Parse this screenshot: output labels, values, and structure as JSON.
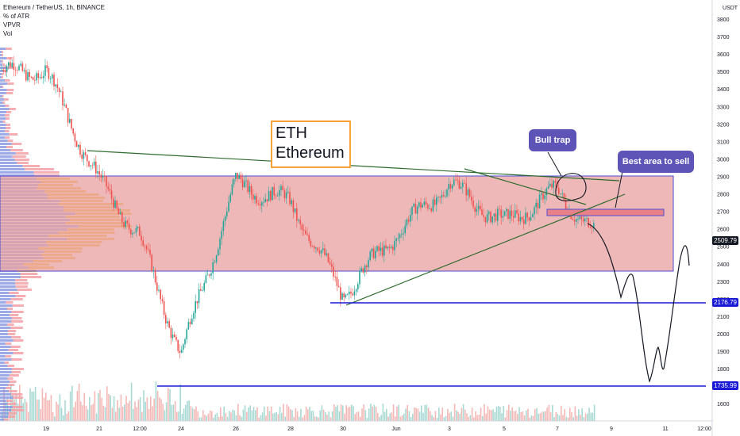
{
  "legend": {
    "line1": "Ethereum / TetherUS, 1h, BINANCE",
    "line2": "% of ATR",
    "line3": "VPVR",
    "line4": "Vol"
  },
  "annotations": {
    "title_line1": "ETH",
    "title_line2": "Ethereum",
    "bull_trap": "Bull trap",
    "best_area": "Best area to sell"
  },
  "price_tags": {
    "current": "2509.79",
    "support_1": "2176.79",
    "support_2": "1735.99"
  },
  "colors": {
    "zone_fill": "#e8a0a0",
    "zone_border": "#4e4ed6",
    "support_line": "#1a1ad6",
    "trendline": "#2e6b2e",
    "callout": "#5e54b8",
    "candle_up": "#26a69a",
    "candle_down": "#ef5350"
  },
  "chart_data": {
    "type": "candlestick",
    "symbol": "Ethereum / TetherUS",
    "timeframe": "1h",
    "exchange": "BINANCE",
    "y_axis_unit": "USDT",
    "ylim": [
      1560,
      3800
    ],
    "y_ticks": [
      1600,
      1700,
      1800,
      1900,
      2000,
      2100,
      2200,
      2300,
      2400,
      2500,
      2600,
      2700,
      2800,
      2900,
      3000,
      3100,
      3200,
      3300,
      3400,
      3500,
      3600,
      3700,
      3800
    ],
    "x_ticks": [
      "19",
      "21",
      "12:00",
      "24",
      "26",
      "28",
      "30",
      "Jun",
      "3",
      "5",
      "7",
      "9",
      "11",
      "12:00"
    ],
    "approx_close_path": [
      [
        "19",
        3500
      ],
      [
        "21",
        2870
      ],
      [
        "12:00",
        2550
      ],
      [
        "24",
        1880
      ],
      [
        "26",
        2860
      ],
      [
        "28",
        2750
      ],
      [
        "30",
        2220
      ],
      [
        "Jun",
        2570
      ],
      [
        "3",
        2860
      ],
      [
        "5",
        2630
      ],
      [
        "7",
        2820
      ],
      [
        "9",
        2460
      ]
    ],
    "horizontal_levels": [
      2176.79,
      1735.99
    ],
    "range_zone": [
      2340,
      2860
    ],
    "sell_zone": [
      2650,
      2680
    ],
    "last_price": 2509.79
  }
}
